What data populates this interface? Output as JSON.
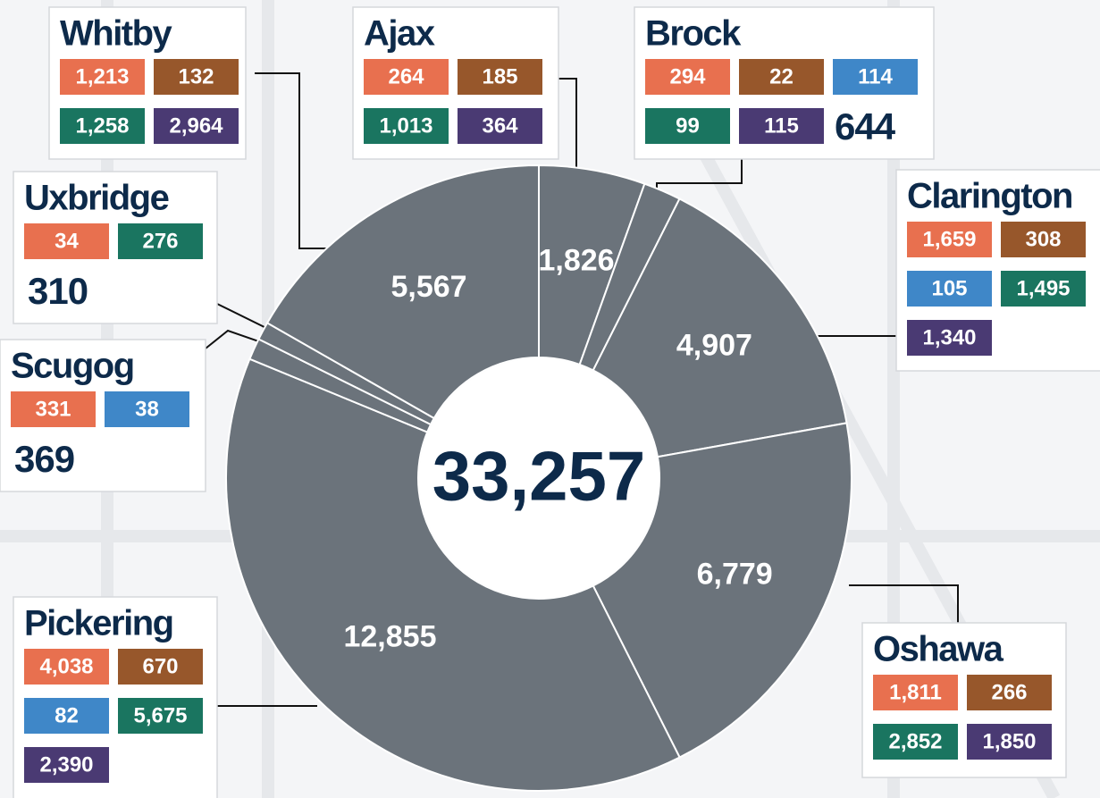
{
  "chart_data": {
    "type": "donut",
    "categories": [
      "Ajax",
      "Brock",
      "Clarington",
      "Oshawa",
      "Pickering",
      "Scugog",
      "Uxbridge",
      "Whitby"
    ],
    "values": [
      1826,
      644,
      4907,
      6779,
      12855,
      369,
      310,
      5567
    ],
    "value_labels": [
      "1,826",
      "644",
      "4,907",
      "6,779",
      "12,855",
      "369",
      "310",
      "5,567"
    ],
    "color": "#6b737b",
    "total": 33257,
    "total_label": "33,257",
    "breakdowns": [
      [
        {
          "color": "#e8704f",
          "value": 264,
          "label": "264"
        },
        {
          "color": "#97572b",
          "value": 185,
          "label": "185"
        },
        {
          "color": "#1a7560",
          "value": 1013,
          "label": "1,013"
        },
        {
          "color": "#4a3a73",
          "value": 364,
          "label": "364"
        }
      ],
      [
        {
          "color": "#e8704f",
          "value": 294,
          "label": "294"
        },
        {
          "color": "#97572b",
          "value": 22,
          "label": "22"
        },
        {
          "color": "#3f87c8",
          "value": 114,
          "label": "114"
        },
        {
          "color": "#1a7560",
          "value": 99,
          "label": "99"
        },
        {
          "color": "#4a3a73",
          "value": 115,
          "label": "115"
        }
      ],
      [
        {
          "color": "#e8704f",
          "value": 1659,
          "label": "1,659"
        },
        {
          "color": "#97572b",
          "value": 308,
          "label": "308"
        },
        {
          "color": "#3f87c8",
          "value": 105,
          "label": "105"
        },
        {
          "color": "#1a7560",
          "value": 1495,
          "label": "1,495"
        },
        {
          "color": "#4a3a73",
          "value": 1340,
          "label": "1,340"
        }
      ],
      [
        {
          "color": "#e8704f",
          "value": 1811,
          "label": "1,811"
        },
        {
          "color": "#97572b",
          "value": 266,
          "label": "266"
        },
        {
          "color": "#1a7560",
          "value": 2852,
          "label": "2,852"
        },
        {
          "color": "#4a3a73",
          "value": 1850,
          "label": "1,850"
        }
      ],
      [
        {
          "color": "#e8704f",
          "value": 4038,
          "label": "4,038"
        },
        {
          "color": "#97572b",
          "value": 670,
          "label": "670"
        },
        {
          "color": "#3f87c8",
          "value": 82,
          "label": "82"
        },
        {
          "color": "#1a7560",
          "value": 5675,
          "label": "5,675"
        },
        {
          "color": "#4a3a73",
          "value": 2390,
          "label": "2,390"
        }
      ],
      [
        {
          "color": "#e8704f",
          "value": 331,
          "label": "331"
        },
        {
          "color": "#3f87c8",
          "value": 38,
          "label": "38"
        }
      ],
      [
        {
          "color": "#e8704f",
          "value": 34,
          "label": "34"
        },
        {
          "color": "#1a7560",
          "value": 276,
          "label": "276"
        }
      ],
      [
        {
          "color": "#e8704f",
          "value": 1213,
          "label": "1,213"
        },
        {
          "color": "#97572b",
          "value": 132,
          "label": "132"
        },
        {
          "color": "#1a7560",
          "value": 1258,
          "label": "1,258"
        },
        {
          "color": "#4a3a73",
          "value": 2964,
          "label": "2,964"
        }
      ]
    ]
  }
}
